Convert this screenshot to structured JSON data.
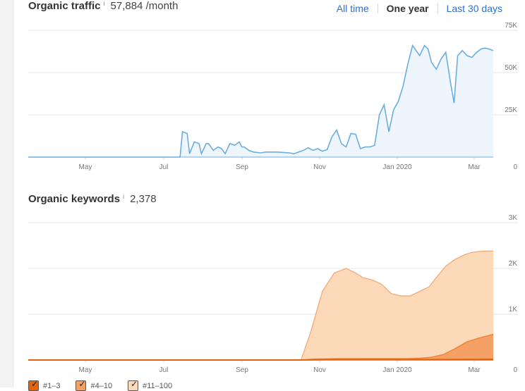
{
  "traffic": {
    "title": "Organic traffic",
    "info": "i",
    "value": "57,884 /month",
    "tabs": [
      {
        "label": "All time",
        "active": false
      },
      {
        "label": "One year",
        "active": true
      },
      {
        "label": "Last 30 days",
        "active": false
      }
    ]
  },
  "keywords": {
    "title": "Organic keywords",
    "info": "i",
    "value": "2,378"
  },
  "legend": [
    {
      "label": "#1–3",
      "color": "#e8620a"
    },
    {
      "label": "#4–10",
      "color": "#f5a064"
    },
    {
      "label": "#11–100",
      "color": "#fbd9b9"
    }
  ],
  "chart_data": [
    {
      "type": "area",
      "title": "Organic traffic",
      "x_ticks": [
        "May",
        "Jul",
        "Sep",
        "Nov",
        "Jan 2020",
        "Mar"
      ],
      "y_ticks": [
        "75K",
        "50K",
        "25K",
        "0"
      ],
      "ylim": [
        0,
        75000
      ],
      "grid": true,
      "color": "#6aaee0",
      "fill": "#eef5fc",
      "x": [
        0,
        70,
        128,
        130,
        134,
        136,
        140,
        144,
        146,
        150,
        152,
        156,
        160,
        163,
        166,
        170,
        174,
        178,
        180,
        182,
        186,
        190,
        196,
        200,
        210,
        220,
        224,
        228,
        232,
        236,
        240,
        244,
        248,
        252,
        256,
        260,
        264,
        268,
        272,
        276,
        280,
        284,
        288,
        292,
        296,
        300,
        304,
        308,
        312,
        316,
        320,
        324,
        328,
        330,
        334,
        337,
        340,
        344,
        348,
        352,
        356,
        359,
        362,
        366,
        370,
        374,
        378,
        382,
        385,
        388,
        392
      ],
      "values": [
        0,
        0,
        0,
        15000,
        14000,
        2000,
        9000,
        8000,
        2000,
        8000,
        8000,
        4000,
        6000,
        5000,
        2000,
        8000,
        7000,
        9000,
        6000,
        6000,
        4000,
        3000,
        2500,
        3000,
        3000,
        2500,
        2000,
        3000,
        4000,
        5500,
        4000,
        5000,
        3500,
        4500,
        12000,
        16000,
        8000,
        6000,
        14000,
        13500,
        5000,
        6000,
        6000,
        7000,
        25000,
        31000,
        15000,
        28000,
        33000,
        42000,
        55000,
        66000,
        62000,
        60000,
        66000,
        64000,
        56000,
        52000,
        58000,
        62000,
        44000,
        32000,
        60000,
        63000,
        60000,
        59000,
        62000,
        64000,
        64500,
        64000,
        63000
      ],
      "x_unit": "days since 2019-03-18"
    },
    {
      "type": "area",
      "title": "Organic keywords",
      "x_ticks": [
        "May",
        "Jul",
        "Sep",
        "Nov",
        "Jan 2020",
        "Mar"
      ],
      "y_ticks": [
        "3K",
        "2K",
        "1K",
        "0"
      ],
      "ylim": [
        0,
        3000
      ],
      "grid": true,
      "series": [
        {
          "name": "#11–100",
          "color": "#fbd9b9",
          "stroke": "#f3ad7c",
          "x": [
            0,
            230,
            238,
            248,
            258,
            268,
            276,
            282,
            290,
            298,
            306,
            314,
            322,
            330,
            338,
            344,
            352,
            360,
            368,
            374,
            380,
            386,
            392
          ],
          "values": [
            0,
            0,
            600,
            1500,
            1900,
            2000,
            1900,
            1800,
            1750,
            1650,
            1450,
            1400,
            1400,
            1500,
            1600,
            1800,
            2050,
            2200,
            2300,
            2350,
            2370,
            2380,
            2380
          ]
        },
        {
          "name": "#4–10",
          "color": "#f5a064",
          "stroke": "#f08038",
          "x": [
            0,
            230,
            240,
            260,
            280,
            300,
            320,
            330,
            340,
            350,
            360,
            370,
            380,
            392
          ],
          "values": [
            0,
            0,
            20,
            30,
            30,
            30,
            30,
            40,
            60,
            120,
            250,
            400,
            480,
            560
          ]
        },
        {
          "name": "#1–3",
          "color": "#e8620a",
          "stroke": "#e8620a",
          "x": [
            0,
            230,
            250,
            300,
            350,
            392
          ],
          "values": [
            0,
            0,
            8,
            10,
            10,
            15
          ]
        }
      ],
      "x_unit": "days since 2019-03-18"
    }
  ]
}
